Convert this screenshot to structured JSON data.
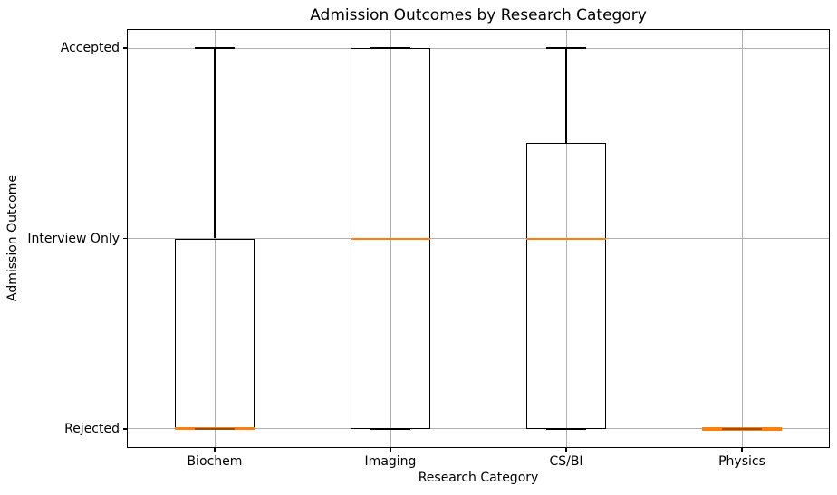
{
  "chart_data": {
    "type": "boxplot",
    "title": "Admission Outcomes by Research Category",
    "xlabel": "Research Category",
    "ylabel": "Admission Outcome",
    "categories": [
      "Biochem",
      "Imaging",
      "CS/BI",
      "Physics"
    ],
    "yticks": {
      "values": [
        0,
        1,
        2
      ],
      "labels": [
        "Rejected",
        "Interview Only",
        "Accepted"
      ]
    },
    "xlim": [
      0.5,
      4.5
    ],
    "ylim": [
      -0.1,
      2.1
    ],
    "grid": true,
    "legend": false,
    "series": [
      {
        "category": "Biochem",
        "whislo": 0,
        "q1": 0,
        "med": 0,
        "q3": 1,
        "whishi": 2
      },
      {
        "category": "Imaging",
        "whislo": 0,
        "q1": 0,
        "med": 1,
        "q3": 2,
        "whishi": 2
      },
      {
        "category": "CS/BI",
        "whislo": 0,
        "q1": 0,
        "med": 1,
        "q3": 1.5,
        "whishi": 2
      },
      {
        "category": "Physics",
        "whislo": 0,
        "q1": 0,
        "med": 0,
        "q3": 0,
        "whishi": 0
      }
    ],
    "colors": {
      "median": "#ff7f0e",
      "median_cap_overlap": "#8f5415",
      "box_line": "#000000",
      "grid": "#b0b0b0",
      "background": "#ffffff",
      "text": "#000000"
    }
  }
}
